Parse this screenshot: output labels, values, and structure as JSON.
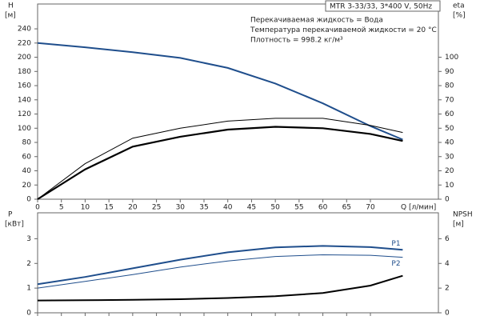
{
  "chart_data": [
    {
      "type": "line",
      "title": "MTR 3-33/33, 3*400 V, 50Hz",
      "annotations": [
        "Перекачиваемая жидкость = Вода",
        "Температура перекачиваемой жидкости = 20 °C",
        "Плотность = 998.2 кг/м³"
      ],
      "xlabel": "Q [л/мин]",
      "ylabel": "H",
      "yunit": "[м]",
      "y2label": "eta",
      "y2unit": "[%]",
      "xlim": [
        0,
        84.3
      ],
      "xticks": [
        0,
        5,
        10,
        15,
        20,
        25,
        30,
        35,
        40,
        45,
        50,
        55,
        60,
        65,
        70
      ],
      "ylim": [
        0,
        275
      ],
      "yticks": [
        0,
        20,
        40,
        60,
        80,
        100,
        120,
        140,
        160,
        180,
        200,
        220,
        240
      ],
      "y2lim": [
        0,
        137.5
      ],
      "y2ticks": [
        0,
        10,
        20,
        30,
        40,
        50,
        60,
        70,
        80,
        90,
        100
      ],
      "series": [
        {
          "color": "#1f4e8c",
          "linewidth": 2,
          "x": [
            0,
            10,
            20,
            30,
            40,
            50,
            60,
            70,
            76.8
          ],
          "values": [
            220,
            214,
            207,
            199,
            185,
            163,
            135,
            103,
            84
          ]
        },
        {
          "color": "#000000",
          "linewidth": 1,
          "axis": "y2",
          "x": [
            0,
            10,
            20,
            30,
            40,
            50,
            60,
            70,
            76.8
          ],
          "values": [
            0,
            25,
            43,
            50,
            55,
            57,
            57,
            52,
            47
          ]
        },
        {
          "color": "#000000",
          "linewidth": 2.2,
          "axis": "y2",
          "x": [
            0,
            10,
            20,
            30,
            40,
            50,
            60,
            70,
            76.8
          ],
          "values": [
            0,
            21,
            37,
            44,
            49,
            51,
            50,
            46,
            41
          ]
        }
      ]
    },
    {
      "type": "line",
      "ylabel": "P",
      "yunit": "[кВт]",
      "y2label": "NPSH",
      "y2unit": "[м]",
      "xlim": [
        0,
        84.3
      ],
      "ylim": [
        0,
        4.05
      ],
      "yticks": [
        0,
        1,
        2,
        3
      ],
      "y2lim": [
        0,
        8.1
      ],
      "y2ticks": [
        0,
        2,
        4,
        6
      ],
      "series": [
        {
          "name": "P1",
          "color": "#1f4e8c",
          "linewidth": 2,
          "x": [
            0,
            10,
            20,
            30,
            40,
            50,
            60,
            70,
            76.8
          ],
          "values": [
            1.16,
            1.45,
            1.8,
            2.15,
            2.45,
            2.65,
            2.71,
            2.66,
            2.55
          ]
        },
        {
          "name": "P2",
          "color": "#1f4e8c",
          "linewidth": 1,
          "x": [
            0,
            10,
            20,
            30,
            40,
            50,
            60,
            70,
            76.8
          ],
          "values": [
            1.0,
            1.27,
            1.55,
            1.85,
            2.1,
            2.28,
            2.35,
            2.33,
            2.25
          ]
        },
        {
          "color": "#000000",
          "linewidth": 2,
          "axis": "y2",
          "x": [
            0,
            10,
            20,
            30,
            40,
            50,
            60,
            70,
            76.8
          ],
          "values": [
            1.0,
            1.02,
            1.05,
            1.1,
            1.2,
            1.35,
            1.6,
            2.2,
            3.0
          ]
        }
      ]
    }
  ]
}
